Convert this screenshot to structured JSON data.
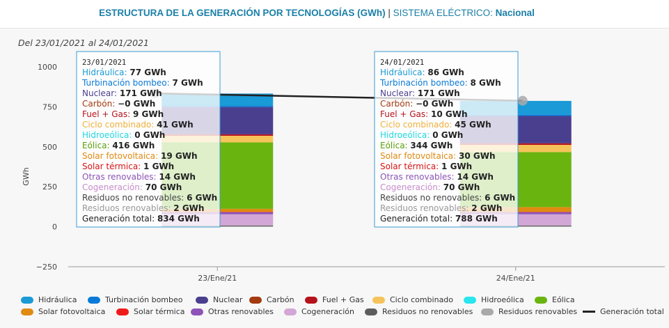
{
  "header": {
    "title_main": "ESTRUCTURA DE LA GENERACIÓN POR TECNOLOGÍAS (GWh)",
    "separator": " | ",
    "title_system_label": "SISTEMA ELÉCTRICO:",
    "title_system_value": "Nacional"
  },
  "date_range": "Del 23/01/2021 al 24/01/2021",
  "chart_data": {
    "type": "bar",
    "stacked": true,
    "ylabel": "GWh",
    "ylim": [
      -250,
      1000
    ],
    "yticks": [
      -250,
      0,
      250,
      500,
      750,
      1000
    ],
    "categories": [
      "23/Ene/21",
      "24/Ene/21"
    ],
    "series": [
      {
        "name": "Hidráulica",
        "color": "#1a9ad6",
        "values": [
          77,
          86
        ]
      },
      {
        "name": "Turbinación bombeo",
        "color": "#0a7ad8",
        "values": [
          7,
          8
        ]
      },
      {
        "name": "Nuclear",
        "color": "#4a3f8f",
        "values": [
          171,
          171
        ]
      },
      {
        "name": "Carbón",
        "color": "#a33a10",
        "values": [
          0,
          0
        ]
      },
      {
        "name": "Fuel + Gas",
        "color": "#b5121b",
        "values": [
          9,
          10
        ]
      },
      {
        "name": "Ciclo combinado",
        "color": "#f5c35a",
        "values": [
          41,
          45
        ]
      },
      {
        "name": "Hidroeólica",
        "color": "#28e5ee",
        "values": [
          0,
          0
        ]
      },
      {
        "name": "Eólica",
        "color": "#6ab40f",
        "values": [
          416,
          344
        ]
      },
      {
        "name": "Solar fotovoltaica",
        "color": "#e08a12",
        "values": [
          19,
          30
        ]
      },
      {
        "name": "Solar térmica",
        "color": "#ef1a1a",
        "values": [
          1,
          1
        ]
      },
      {
        "name": "Otras renovables",
        "color": "#8c54b8",
        "values": [
          14,
          14
        ]
      },
      {
        "name": "Cogeneración",
        "color": "#d2a6d6",
        "values": [
          70,
          70
        ]
      },
      {
        "name": "Residuos no renovables",
        "color": "#5d5d5d",
        "values": [
          6,
          6
        ]
      },
      {
        "name": "Residuos renovables",
        "color": "#a9a9a9",
        "values": [
          2,
          2
        ]
      }
    ],
    "line_series": {
      "name": "Generación total",
      "color": "#222222",
      "values": [
        834,
        788
      ]
    },
    "tooltips": [
      {
        "date": "23/01/2021",
        "rows": [
          {
            "label": "Hidráulica",
            "value": "77 GWh",
            "color": "#1a9ad6"
          },
          {
            "label": "Turbinación bombeo",
            "value": "7 GWh",
            "color": "#0a7ad8"
          },
          {
            "label": "Nuclear",
            "value": "171 GWh",
            "color": "#4a3f8f"
          },
          {
            "label": "Carbón",
            "value": "−0 GWh",
            "color": "#a33a10"
          },
          {
            "label": "Fuel + Gas",
            "value": "9 GWh",
            "color": "#b5121b"
          },
          {
            "label": "Ciclo combinado",
            "value": "41 GWh",
            "color": "#f0b03a"
          },
          {
            "label": "Hidroeólica",
            "value": "0 GWh",
            "color": "#20d8e2"
          },
          {
            "label": "Eólica",
            "value": "416 GWh",
            "color": "#5c9e0c"
          },
          {
            "label": "Solar fotovoltaica",
            "value": "19 GWh",
            "color": "#e08a12"
          },
          {
            "label": "Solar térmica",
            "value": "1 GWh",
            "color": "#d81414"
          },
          {
            "label": "Otras renovables",
            "value": "14 GWh",
            "color": "#8c54b8"
          },
          {
            "label": "Cogeneración",
            "value": "70 GWh",
            "color": "#c88ccc"
          },
          {
            "label": "Residuos no renovables",
            "value": "6 GWh",
            "color": "#444444"
          },
          {
            "label": "Residuos renovables",
            "value": "2 GWh",
            "color": "#999999"
          },
          {
            "label": "Generación total",
            "value": "834 GWh",
            "color": "#222222"
          }
        ]
      },
      {
        "date": "24/01/2021",
        "rows": [
          {
            "label": "Hidráulica",
            "value": "86 GWh",
            "color": "#1a9ad6"
          },
          {
            "label": "Turbinación bombeo",
            "value": "8 GWh",
            "color": "#0a7ad8"
          },
          {
            "label": "Nuclear",
            "value": "171 GWh",
            "color": "#4a3f8f"
          },
          {
            "label": "Carbón",
            "value": "−0 GWh",
            "color": "#a33a10"
          },
          {
            "label": "Fuel + Gas",
            "value": "10 GWh",
            "color": "#b5121b"
          },
          {
            "label": "Ciclo combinado",
            "value": "45 GWh",
            "color": "#f0b03a"
          },
          {
            "label": "Hidroeólica",
            "value": "0 GWh",
            "color": "#20d8e2"
          },
          {
            "label": "Eólica",
            "value": "344 GWh",
            "color": "#5c9e0c"
          },
          {
            "label": "Solar fotovoltaica",
            "value": "30 GWh",
            "color": "#e08a12"
          },
          {
            "label": "Solar térmica",
            "value": "1 GWh",
            "color": "#d81414"
          },
          {
            "label": "Otras renovables",
            "value": "14 GWh",
            "color": "#8c54b8"
          },
          {
            "label": "Cogeneración",
            "value": "70 GWh",
            "color": "#c88ccc"
          },
          {
            "label": "Residuos no renovables",
            "value": "6 GWh",
            "color": "#444444"
          },
          {
            "label": "Residuos renovables",
            "value": "2 GWh",
            "color": "#999999"
          },
          {
            "label": "Generación total",
            "value": "788 GWh",
            "color": "#222222"
          }
        ]
      }
    ],
    "legend_position": "bottom",
    "grid": false
  }
}
